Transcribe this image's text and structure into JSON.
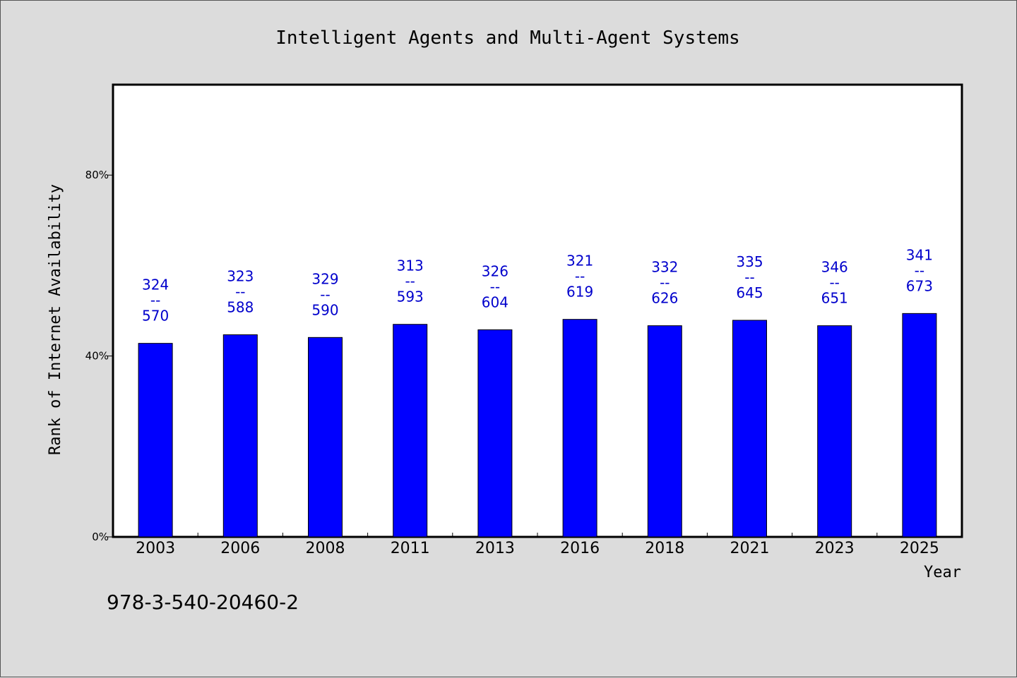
{
  "chart_data": {
    "type": "bar",
    "title": "Intelligent Agents and Multi-Agent Systems",
    "xlabel": "Year",
    "ylabel": "Rank of Internet Availability",
    "ylim": [
      0,
      100
    ],
    "yticks": [
      {
        "value": 0,
        "label": "0%"
      },
      {
        "value": 40,
        "label": "40%"
      },
      {
        "value": 80,
        "label": "80%"
      }
    ],
    "categories": [
      "2003",
      "2006",
      "2008",
      "2011",
      "2013",
      "2016",
      "2018",
      "2021",
      "2023",
      "2025"
    ],
    "values": [
      42.8,
      44.7,
      44.1,
      47.0,
      45.8,
      48.1,
      46.7,
      47.9,
      46.7,
      49.4
    ],
    "numerators": [
      "324",
      "323",
      "329",
      "313",
      "326",
      "321",
      "332",
      "335",
      "346",
      "341"
    ],
    "denominators": [
      "570",
      "588",
      "590",
      "593",
      "604",
      "619",
      "626",
      "645",
      "651",
      "673"
    ],
    "label_separator": "--",
    "bar_color": "#0000ff",
    "label_color": "#0000cc",
    "grid": false,
    "legend": "none"
  },
  "footer": {
    "isbn": "978-3-540-20460-2"
  }
}
